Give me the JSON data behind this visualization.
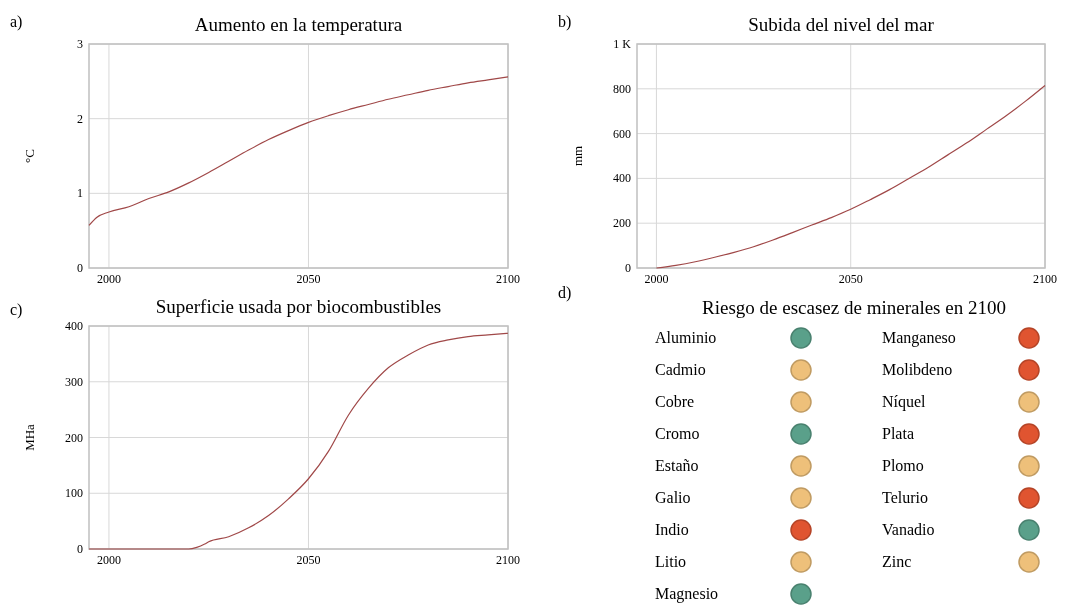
{
  "chart_data": [
    {
      "type": "line",
      "title": "Aumento en la temperatura",
      "ylabel": "°C",
      "annotations": [
        "a)"
      ],
      "xlim": [
        1995,
        2100
      ],
      "xticks": [
        2000,
        2050,
        2100
      ],
      "ylim": [
        0,
        3
      ],
      "yticks": [
        0,
        1,
        2,
        3
      ],
      "grid": true,
      "x": [
        1995,
        1997,
        2000,
        2005,
        2010,
        2015,
        2020,
        2025,
        2030,
        2035,
        2040,
        2045,
        2050,
        2055,
        2060,
        2065,
        2070,
        2075,
        2080,
        2085,
        2090,
        2095,
        2100
      ],
      "series": [
        {
          "color": "#a04848",
          "values": [
            0.57,
            0.68,
            0.75,
            0.82,
            0.93,
            1.02,
            1.14,
            1.28,
            1.43,
            1.58,
            1.72,
            1.84,
            1.95,
            2.04,
            2.12,
            2.19,
            2.26,
            2.32,
            2.38,
            2.43,
            2.48,
            2.52,
            2.56
          ]
        }
      ]
    },
    {
      "type": "line",
      "title": "Subida del nivel del mar",
      "ylabel": "mm",
      "annotations": [
        "b)"
      ],
      "xlim": [
        1995,
        2100
      ],
      "xticks": [
        2000,
        2050,
        2100
      ],
      "ylim": [
        0,
        1000
      ],
      "yticks": [
        0,
        200,
        400,
        600,
        800,
        {
          "value": 1000,
          "label": "1 K"
        }
      ],
      "grid": true,
      "x": [
        2000,
        2005,
        2010,
        2015,
        2020,
        2025,
        2030,
        2035,
        2040,
        2045,
        2050,
        2055,
        2060,
        2065,
        2070,
        2075,
        2080,
        2085,
        2090,
        2095,
        2100
      ],
      "series": [
        {
          "color": "#a04848",
          "values": [
            0,
            12,
            28,
            48,
            70,
            95,
            125,
            158,
            192,
            225,
            262,
            305,
            350,
            400,
            450,
            505,
            560,
            620,
            680,
            745,
            815
          ]
        }
      ]
    },
    {
      "type": "line",
      "title": "Superficie usada por biocombustibles",
      "ylabel": "MHa",
      "annotations": [
        "c)"
      ],
      "xlim": [
        1995,
        2100
      ],
      "xticks": [
        2000,
        2050,
        2100
      ],
      "ylim": [
        0,
        400
      ],
      "yticks": [
        0,
        100,
        200,
        300,
        400
      ],
      "grid": true,
      "x": [
        1995,
        2000,
        2010,
        2020,
        2022,
        2024,
        2025,
        2030,
        2035,
        2040,
        2045,
        2050,
        2055,
        2060,
        2065,
        2070,
        2075,
        2080,
        2085,
        2090,
        2095,
        2100
      ],
      "series": [
        {
          "color": "#a04848",
          "values": [
            0,
            0,
            0,
            0,
            3,
            9,
            13,
            22,
            38,
            60,
            90,
            126,
            175,
            240,
            288,
            325,
            348,
            366,
            375,
            381,
            384,
            387
          ]
        }
      ]
    },
    {
      "type": "other",
      "title": "Riesgo de escasez de minerales en 2100",
      "annotations": [
        "d)"
      ],
      "categories": [
        "Aluminio",
        "Cadmio",
        "Cobre",
        "Cromo",
        "Estaño",
        "Galio",
        "Indio",
        "Litio",
        "Magnesio",
        "Manganeso",
        "Molibdeno",
        "Níquel",
        "Plata",
        "Plomo",
        "Telurio",
        "Vanadio",
        "Zinc"
      ],
      "colors": [
        "#5aa08a",
        "#eec07a",
        "#eec07a",
        "#5aa08a",
        "#eec07a",
        "#eec07a",
        "#e05430",
        "#eec07a",
        "#5aa08a",
        "#e05430",
        "#e05430",
        "#eec07a",
        "#e05430",
        "#eec07a",
        "#e05430",
        "#5aa08a",
        "#eec07a"
      ]
    }
  ]
}
